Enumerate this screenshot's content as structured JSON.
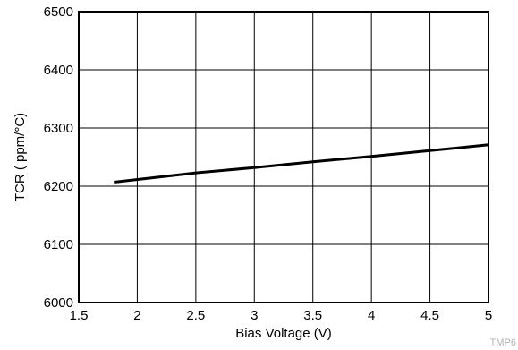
{
  "chart_data": {
    "type": "line",
    "title": "",
    "xlabel": "Bias Voltage (V)",
    "ylabel": "TCR ( ppm/°C)",
    "xlim": [
      1.5,
      5
    ],
    "ylim": [
      6000,
      6500
    ],
    "x_ticks": [
      "1.5",
      "2",
      "2.5",
      "3",
      "3.5",
      "4",
      "4.5",
      "5"
    ],
    "y_ticks": [
      "6000",
      "6100",
      "6200",
      "6300",
      "6400",
      "6500"
    ],
    "grid": true,
    "series": [
      {
        "color": "#000000",
        "x": [
          1.8,
          2.5,
          3.0,
          3.5,
          4.0,
          4.5,
          5.0
        ],
        "y": [
          6207,
          6223,
          6232,
          6242,
          6251,
          6261,
          6271
        ]
      }
    ],
    "figure_code": "TMP6"
  }
}
